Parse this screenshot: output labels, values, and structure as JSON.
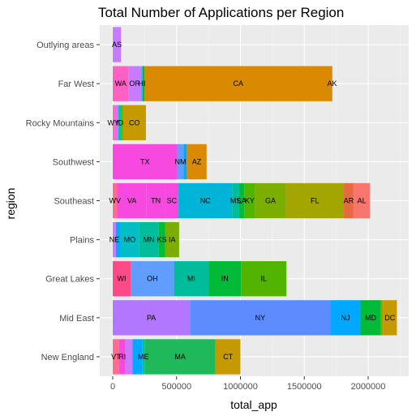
{
  "chart_data": {
    "type": "bar",
    "orientation": "horizontal",
    "stacked": true,
    "title": "Total Number of Applications per Region",
    "xlabel": "total_app",
    "ylabel": "region",
    "xlim": [
      0,
      2250000
    ],
    "x_ticks": [
      0,
      500000,
      1000000,
      1500000,
      2000000
    ],
    "x_tick_labels": [
      "0",
      "500000",
      "1000000",
      "1500000",
      "2000000"
    ],
    "grid": true,
    "legend": "none",
    "categories": [
      "Outlying areas",
      "Far West",
      "Rocky Mountains",
      "Southwest",
      "Southeast",
      "Plains",
      "Great Lakes",
      "Mid East",
      "New England"
    ],
    "bars": [
      {
        "region": "Outlying areas",
        "segments": [
          {
            "label": "AS",
            "value": 65000,
            "color": "#C77CFF"
          }
        ]
      },
      {
        "region": "Far West",
        "segments": [
          {
            "label": "WA",
            "value": 125000,
            "color": "#FF61C3"
          },
          {
            "label": "OR",
            "value": 95000,
            "color": "#C77CFF"
          },
          {
            "label": "HI",
            "value": 15000,
            "color": "#619CFF"
          },
          {
            "label": "",
            "value": 15000,
            "color": "#00BA38"
          },
          {
            "label": "CA",
            "value": 1465000,
            "color": "#D98A00"
          },
          {
            "label": "AK",
            "value": 5000,
            "color": "#C49A00"
          }
        ]
      },
      {
        "region": "Rocky Mountains",
        "segments": [
          {
            "label": "WY",
            "value": 10000,
            "color": "#FF6C91"
          },
          {
            "label": "",
            "value": 35000,
            "color": "#E76BF3"
          },
          {
            "label": "ID",
            "value": 20000,
            "color": "#00C1A3"
          },
          {
            "label": "",
            "value": 15000,
            "color": "#53B400"
          },
          {
            "label": "CO",
            "value": 180000,
            "color": "#C49A00"
          }
        ]
      },
      {
        "region": "Southwest",
        "segments": [
          {
            "label": "TX",
            "value": 505000,
            "color": "#F748DF"
          },
          {
            "label": "NM",
            "value": 50000,
            "color": "#619CFF"
          },
          {
            "label": "",
            "value": 25000,
            "color": "#00A9FF"
          },
          {
            "label": "AZ",
            "value": 155000,
            "color": "#D98A00"
          }
        ]
      },
      {
        "region": "Southeast",
        "segments": [
          {
            "label": "WV",
            "value": 35000,
            "color": "#FF6C91"
          },
          {
            "label": "VA",
            "value": 230000,
            "color": "#F748DF"
          },
          {
            "label": "TN",
            "value": 145000,
            "color": "#F748DF"
          },
          {
            "label": "SC",
            "value": 105000,
            "color": "#F748DF"
          },
          {
            "label": "NC",
            "value": 420000,
            "color": "#00B4D8"
          },
          {
            "label": "MS",
            "value": 55000,
            "color": "#00BC9B"
          },
          {
            "label": "LA",
            "value": 40000,
            "color": "#00BA38"
          },
          {
            "label": "KY",
            "value": 85000,
            "color": "#53B400"
          },
          {
            "label": "GA",
            "value": 240000,
            "color": "#7CAE00"
          },
          {
            "label": "FL",
            "value": 455000,
            "color": "#A3A500"
          },
          {
            "label": "AR",
            "value": 75000,
            "color": "#E7693F"
          },
          {
            "label": "AL",
            "value": 130000,
            "color": "#F8766D"
          }
        ]
      },
      {
        "region": "Plains",
        "segments": [
          {
            "label": "NE",
            "value": 25000,
            "color": "#C77CFF"
          },
          {
            "label": "",
            "value": 35000,
            "color": "#00A9FF"
          },
          {
            "label": "MO",
            "value": 145000,
            "color": "#00BFC4"
          },
          {
            "label": "MN",
            "value": 155000,
            "color": "#00BC9B"
          },
          {
            "label": "KS",
            "value": 50000,
            "color": "#00BA38"
          },
          {
            "label": "IA",
            "value": 110000,
            "color": "#7CAE00"
          }
        ]
      },
      {
        "region": "Great Lakes",
        "segments": [
          {
            "label": "WI",
            "value": 140000,
            "color": "#FF4A8A"
          },
          {
            "label": "OH",
            "value": 340000,
            "color": "#619CFF"
          },
          {
            "label": "MI",
            "value": 270000,
            "color": "#00BC9B"
          },
          {
            "label": "IN",
            "value": 255000,
            "color": "#00BA38"
          },
          {
            "label": "IL",
            "value": 355000,
            "color": "#53B400"
          }
        ]
      },
      {
        "region": "Mid East",
        "segments": [
          {
            "label": "PA",
            "value": 605000,
            "color": "#B276FF"
          },
          {
            "label": "NY",
            "value": 1100000,
            "color": "#5C8CFF"
          },
          {
            "label": "NJ",
            "value": 235000,
            "color": "#00A9FF"
          },
          {
            "label": "MD",
            "value": 160000,
            "color": "#00BA38"
          },
          {
            "label": "",
            "value": 15000,
            "color": "#7CAE00"
          },
          {
            "label": "DC",
            "value": 110000,
            "color": "#C49A00"
          }
        ]
      },
      {
        "region": "New England",
        "segments": [
          {
            "label": "VT",
            "value": 50000,
            "color": "#FF6C91"
          },
          {
            "label": "RI",
            "value": 50000,
            "color": "#F748DF"
          },
          {
            "label": "",
            "value": 55000,
            "color": "#C77CFF"
          },
          {
            "label": "",
            "value": 75000,
            "color": "#00A9FF"
          },
          {
            "label": "ME",
            "value": 20000,
            "color": "#00C1A3"
          },
          {
            "label": "MA",
            "value": 555000,
            "color": "#1FB85A"
          },
          {
            "label": "CT",
            "value": 195000,
            "color": "#C49A00"
          }
        ]
      }
    ]
  },
  "colors": {
    "panel_background": "#EBEBEB",
    "grid_major": "#FFFFFF",
    "grid_minor": "#F5F5F5"
  }
}
